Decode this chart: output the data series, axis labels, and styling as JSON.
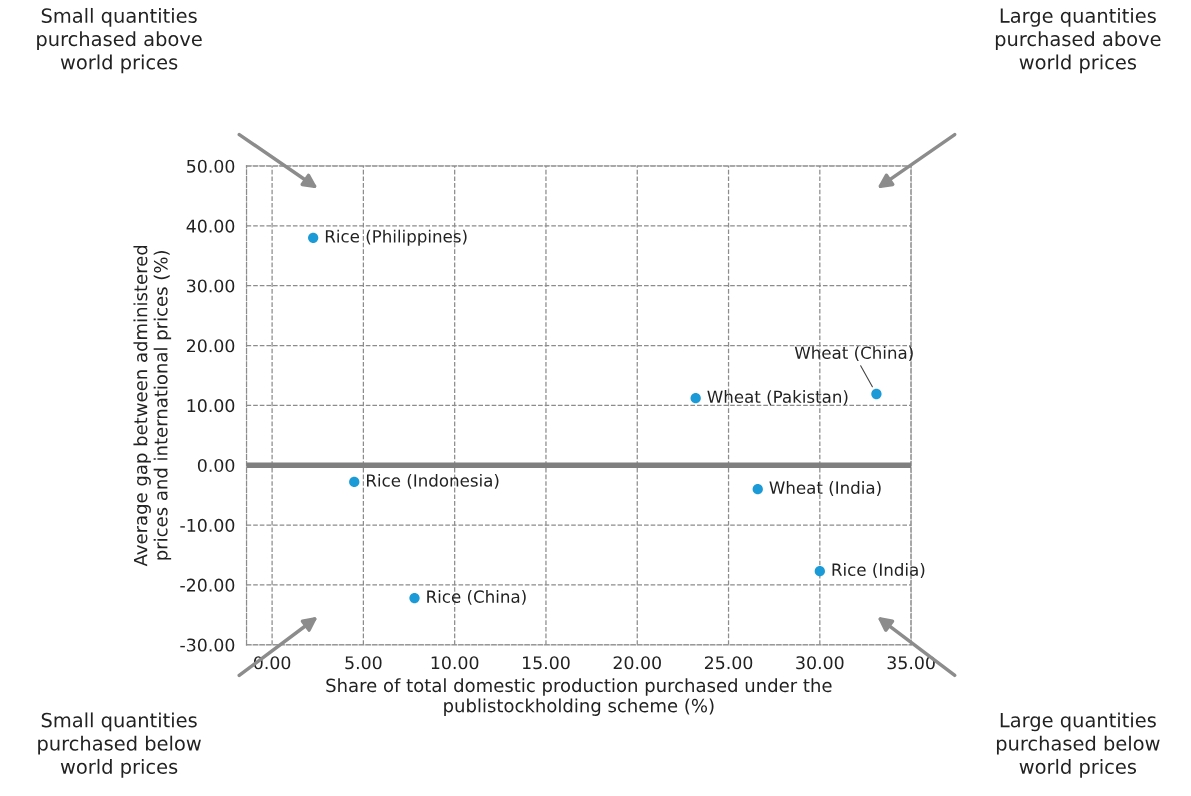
{
  "chart_data": {
    "type": "scatter",
    "xlabel": "Share of total domestic production purchased under the\npublistockholding scheme (%)",
    "ylabel": "Average gap between administered\nprices and international prices (%)",
    "series": [
      {
        "color": "#1a9ad6",
        "x": [
          2.25,
          4.5,
          7.8,
          23.2,
          33.1,
          26.6,
          30.0
        ],
        "values": [
          38.0,
          -2.8,
          -22.2,
          11.2,
          11.9,
          -4.0,
          -17.7
        ]
      }
    ],
    "marker": "circle",
    "xlim": [
      -1.4,
      35
    ],
    "xticks": [
      {
        "value": 0,
        "label": "0.00"
      },
      {
        "value": 5,
        "label": "5.00"
      },
      {
        "value": 10,
        "label": "10.00"
      },
      {
        "value": 15,
        "label": "15.00"
      },
      {
        "value": 20,
        "label": "20.00"
      },
      {
        "value": 25,
        "label": "25.00"
      },
      {
        "value": 30,
        "label": "30.00"
      },
      {
        "value": 35,
        "label": "35.00"
      }
    ],
    "ylim": [
      -30,
      50
    ],
    "yticks": [
      {
        "value": -30,
        "label": "-30.00"
      },
      {
        "value": -20,
        "label": "-20.00"
      },
      {
        "value": -10,
        "label": "-10.00"
      },
      {
        "value": 0,
        "label": "0.00"
      },
      {
        "value": 10,
        "label": "10.00"
      },
      {
        "value": 20,
        "label": "20.00"
      },
      {
        "value": 30,
        "label": "30.00"
      },
      {
        "value": 40,
        "label": "40.00"
      },
      {
        "value": 50,
        "label": "50.00"
      }
    ],
    "grid": true,
    "legend": false,
    "ref_lines": [
      {
        "axis": "y",
        "value": 0,
        "color": "#7f7f7f"
      }
    ],
    "annotations": [
      {
        "text": "Rice (Philippines)",
        "x": 2.25,
        "y": 38.0
      },
      {
        "text": "Rice (Indonesia)",
        "x": 4.5,
        "y": -2.8
      },
      {
        "text": "Rice (China)",
        "x": 7.8,
        "y": -22.2
      },
      {
        "text": "Wheat (Pakistan)",
        "x": 23.2,
        "y": 11.2
      },
      {
        "text": "Wheat (China)",
        "x": 33.1,
        "y": 11.9
      },
      {
        "text": "Wheat (India)",
        "x": 26.6,
        "y": -4.0
      },
      {
        "text": "Rice (India)",
        "x": 30.0,
        "y": -17.7
      },
      "Small quantities\npurchased above\nworld prices",
      "Large quantities\npurchased above\nworld prices",
      "Small quantities\npurchased below\nworld prices",
      "Large quantities\npurchased below\nworld prices"
    ]
  }
}
